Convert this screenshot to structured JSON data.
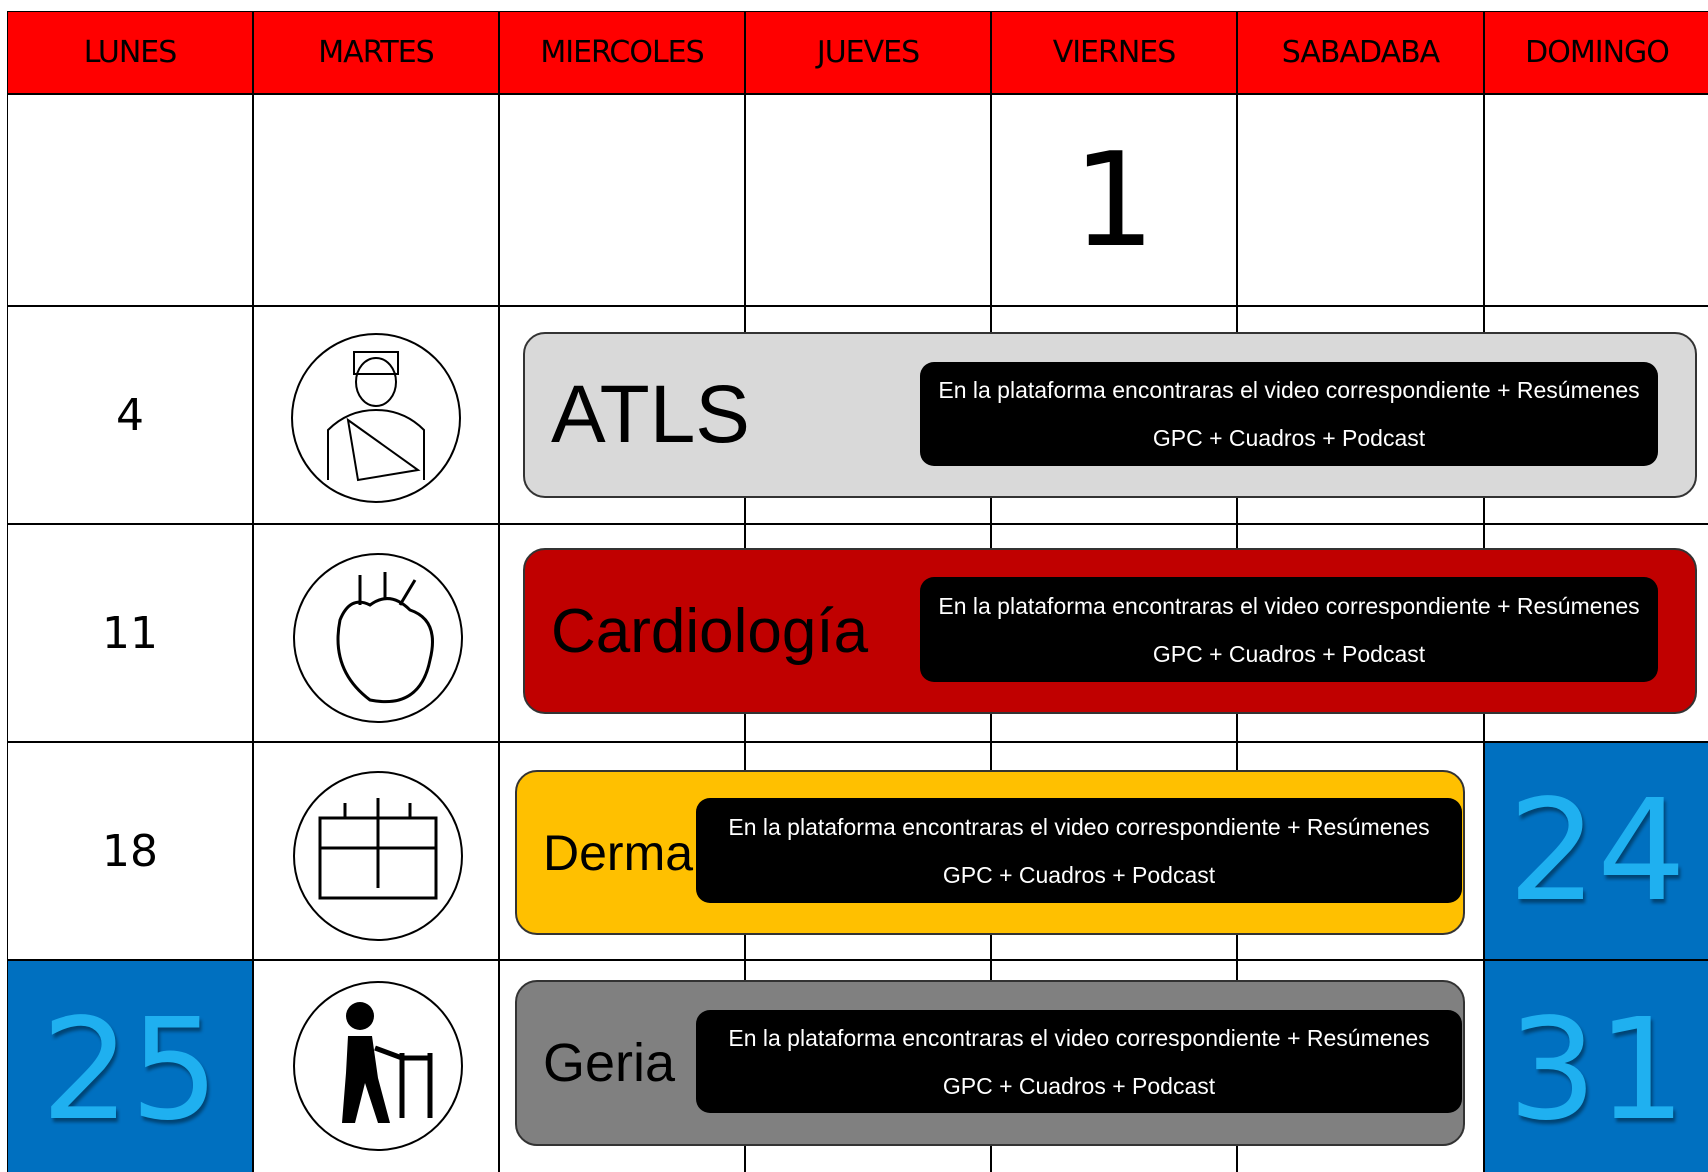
{
  "header": {
    "days": [
      "LUNES",
      "MARTES",
      "MIERCOLES",
      "JUEVES",
      "VIERNES",
      "SABADABA",
      "DOMINGO"
    ]
  },
  "weeks": [
    [
      null,
      null,
      null,
      null,
      "1",
      null,
      null
    ],
    [
      "4",
      null,
      null,
      null,
      null,
      null,
      null
    ],
    [
      "11",
      null,
      null,
      null,
      null,
      null,
      null
    ],
    [
      "18",
      null,
      null,
      null,
      null,
      null,
      "24"
    ],
    [
      "25",
      null,
      null,
      null,
      null,
      null,
      "31"
    ]
  ],
  "events": [
    {
      "title": "ATLS",
      "description": "En la plataforma encontraras el video correspondiente + Resúmenes GPC + Cuadros + Podcast",
      "color": "#d9d9d9"
    },
    {
      "title": "Cardiología",
      "description": "En la plataforma encontraras el video correspondiente + Resúmenes GPC + Cuadros + Podcast",
      "color": "#c00000"
    },
    {
      "title": "Derma",
      "description": "En la plataforma encontraras el video correspondiente + Resúmenes GPC + Cuadros + Podcast",
      "color": "#ffc000"
    },
    {
      "title": "Geria",
      "description": "En la plataforma encontraras el video correspondiente + Resúmenes GPC + Cuadros + Podcast",
      "color": "#808080"
    }
  ]
}
